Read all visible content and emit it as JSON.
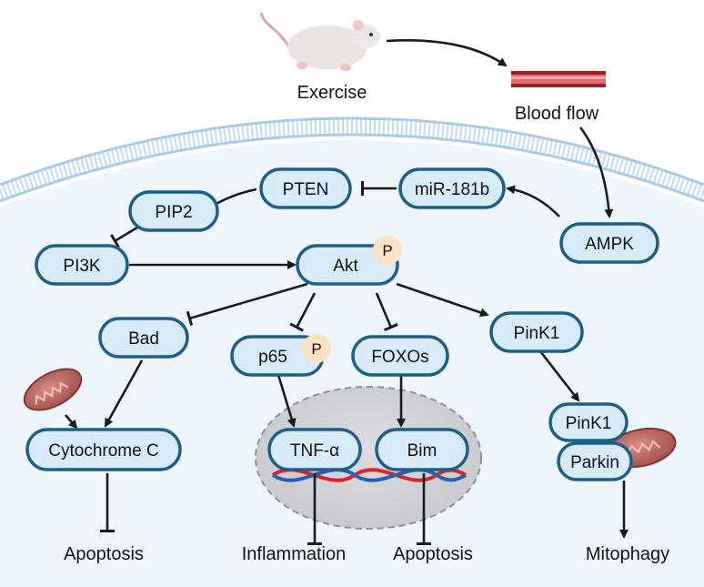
{
  "labels": {
    "exercise": "Exercise",
    "blood_flow": "Blood flow",
    "apoptosis_left": "Apoptosis",
    "inflammation": "Inflammation",
    "apoptosis_mid": "Apoptosis",
    "mitophagy": "Mitophagy"
  },
  "nodes": {
    "pten": "PTEN",
    "mir181b": "miR-181b",
    "pip2": "PIP2",
    "pi3k": "PI3K",
    "akt": "Akt",
    "ampk": "AMPK",
    "bad": "Bad",
    "p65": "p65",
    "foxos": "FOXOs",
    "pink1_top": "PinK1",
    "pink1_low": "PinK1",
    "parkin": "Parkin",
    "cytochrome_c": "Cytochrome C",
    "tnf_alpha": "TNF-α",
    "bim": "Bim"
  },
  "badges": {
    "akt_p": "P",
    "p65_p": "P"
  },
  "colors": {
    "node_fill": "#d7ebf8",
    "node_stroke": "#1f5f85",
    "cell_fill": "#eef5fb",
    "membrane": "#a9cbe6",
    "nucleus_fill": "#d2d4d9",
    "phospho_badge": "#fbe3c4",
    "mito": "#b9625e",
    "dna_red": "#d8232a",
    "dna_blue": "#2a5db0"
  },
  "icons": [
    "mouse-icon",
    "blood-vessel-icon",
    "mitochondria-icon",
    "dna-helix-icon"
  ]
}
